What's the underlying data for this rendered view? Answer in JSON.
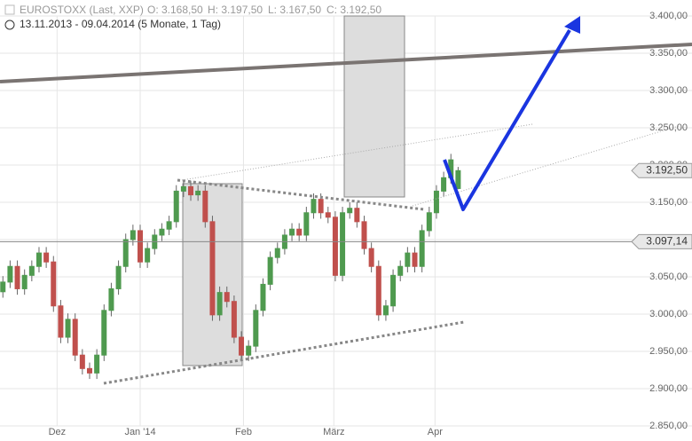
{
  "header": {
    "title": "EUROSTOXX (Last, XXP)",
    "ohlc": [
      "O: 3.168,50",
      "H: 3.197,50",
      "L: 3.167,50",
      "C: 3.192,50"
    ],
    "period": "13.11.2013 - 09.04.2014 (5 Monate, 1 Tag)"
  },
  "chart_data": {
    "type": "candlestick",
    "up_color": "#4f9a4f",
    "down_color": "#c0504d",
    "grid": true,
    "open": [
      3030,
      3043,
      3064,
      3034,
      3052,
      3064,
      3082,
      3070,
      3011,
      2969,
      2993,
      2945,
      2927,
      2921,
      2945,
      3005,
      3034,
      3064,
      3100,
      3112,
      3070,
      3088,
      3106,
      3114,
      3124,
      3165,
      3171,
      3160,
      3165,
      3124,
      2999,
      3029,
      3017,
      2969,
      2945,
      2957,
      3005,
      3040,
      3076,
      3088,
      3106,
      3114,
      3106,
      3136,
      3154,
      3136,
      3130,
      3052,
      3136,
      3142,
      3124,
      3088,
      3064,
      2999,
      3011,
      3052,
      3064,
      3082,
      3064,
      3112,
      3136,
      3165,
      3183,
      3168.5
    ],
    "high": [
      3051,
      3072,
      3072,
      3060,
      3072,
      3090,
      3090,
      3078,
      3019,
      3001,
      3001,
      2953,
      2935,
      2953,
      3013,
      3042,
      3072,
      3108,
      3120,
      3120,
      3096,
      3114,
      3122,
      3132,
      3173,
      3179,
      3179,
      3173,
      3173,
      3132,
      3037,
      3037,
      3025,
      2977,
      2965,
      3013,
      3048,
      3084,
      3096,
      3114,
      3122,
      3122,
      3144,
      3162,
      3162,
      3144,
      3138,
      3144,
      3150,
      3150,
      3132,
      3096,
      3072,
      3019,
      3060,
      3072,
      3090,
      3090,
      3120,
      3144,
      3173,
      3191,
      3215,
      3197.5
    ],
    "low": [
      3022,
      3035,
      3026,
      3026,
      3044,
      3056,
      3062,
      3003,
      2961,
      2961,
      2937,
      2919,
      2913,
      2913,
      2937,
      2997,
      3026,
      3056,
      3092,
      3062,
      3062,
      3080,
      3098,
      3106,
      3116,
      3157,
      3152,
      3152,
      3116,
      2991,
      2991,
      3009,
      2961,
      2937,
      2937,
      2949,
      2997,
      3032,
      3068,
      3080,
      3098,
      3098,
      3098,
      3128,
      3128,
      3122,
      3044,
      3044,
      3128,
      3116,
      3080,
      3056,
      2991,
      2991,
      3003,
      3044,
      3056,
      3056,
      3056,
      3104,
      3128,
      3157,
      3175,
      3167.5
    ],
    "close": [
      3043,
      3064,
      3034,
      3052,
      3064,
      3082,
      3070,
      3011,
      2969,
      2993,
      2945,
      2927,
      2921,
      2945,
      3005,
      3034,
      3064,
      3100,
      3112,
      3070,
      3088,
      3106,
      3114,
      3124,
      3165,
      3171,
      3160,
      3165,
      3124,
      2999,
      3029,
      3017,
      2969,
      2945,
      2957,
      3005,
      3040,
      3076,
      3088,
      3106,
      3114,
      3106,
      3136,
      3154,
      3136,
      3130,
      3052,
      3136,
      3142,
      3124,
      3088,
      3064,
      2999,
      3011,
      3052,
      3064,
      3082,
      3064,
      3112,
      3136,
      3165,
      3183,
      3207,
      3192.5
    ],
    "xlim": [
      -0.4,
      88
    ],
    "xticks": [
      {
        "value": 7.5,
        "label": "Dez"
      },
      {
        "value": 19,
        "label": "Jan '14"
      },
      {
        "value": 33.3,
        "label": "Feb"
      },
      {
        "value": 45.8,
        "label": "März"
      },
      {
        "value": 59.8,
        "label": "Apr"
      }
    ],
    "ylim": [
      2850,
      3400
    ],
    "yticks": [
      {
        "value": 2850,
        "label": "2.850,00"
      },
      {
        "value": 2900,
        "label": "2.900,00"
      },
      {
        "value": 2950,
        "label": "2.950,00"
      },
      {
        "value": 3000,
        "label": "3.000,00"
      },
      {
        "value": 3050,
        "label": "3.050,00"
      },
      {
        "value": 3100,
        "label": "3.100,00"
      },
      {
        "value": 3150,
        "label": "3.150,00"
      },
      {
        "value": 3200,
        "label": "3.200,00"
      },
      {
        "value": 3250,
        "label": "3.250,00"
      },
      {
        "value": 3300,
        "label": "3.300,00"
      },
      {
        "value": 3350,
        "label": "3.350,00"
      },
      {
        "value": 3400,
        "label": "3.400,00"
      }
    ],
    "last_price": {
      "value": 3192.5,
      "label": "3.192,50"
    },
    "reference_line": {
      "value": 3097.14,
      "label": "3.097,14"
    }
  }
}
